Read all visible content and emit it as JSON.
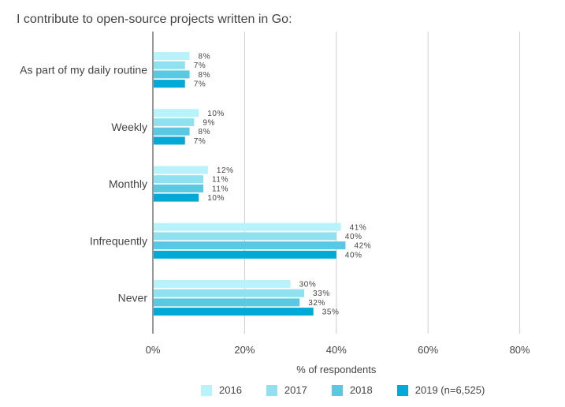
{
  "chart_data": {
    "type": "bar",
    "orientation": "horizontal",
    "title": "I contribute to open-source projects written in Go:",
    "xlabel": "% of respondents",
    "ylabel": "",
    "xlim": [
      0,
      80
    ],
    "x_ticks": [
      0,
      20,
      40,
      60,
      80
    ],
    "x_tick_labels": [
      "0%",
      "20%",
      "40%",
      "60%",
      "80%"
    ],
    "grid": true,
    "legend_position": "bottom",
    "categories": [
      "As part of my daily routine",
      "Weekly",
      "Monthly",
      "Infrequently",
      "Never"
    ],
    "series": [
      {
        "name": "2016",
        "color": "#b8f2fa",
        "values": [
          8,
          10,
          12,
          41,
          30
        ],
        "labels": [
          "8%",
          "10%",
          "12%",
          "41%",
          "30%"
        ]
      },
      {
        "name": "2017",
        "color": "#8fe1f0",
        "values": [
          7,
          9,
          11,
          40,
          33
        ],
        "labels": [
          "7%",
          "9%",
          "11%",
          "40%",
          "33%"
        ]
      },
      {
        "name": "2018",
        "color": "#58c8e3",
        "values": [
          8,
          8,
          11,
          42,
          32
        ],
        "labels": [
          "8%",
          "8%",
          "11%",
          "42%",
          "32%"
        ]
      },
      {
        "name": "2019 (n=6,525)",
        "color": "#00a9d6",
        "values": [
          7,
          7,
          10,
          40,
          35
        ],
        "labels": [
          "7%",
          "7%",
          "10%",
          "40%",
          "35%"
        ]
      }
    ]
  }
}
